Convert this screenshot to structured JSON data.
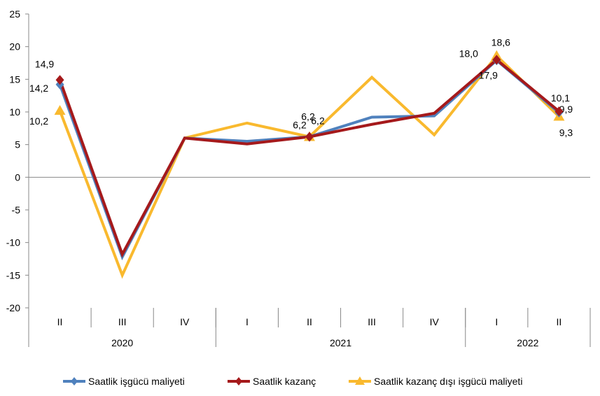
{
  "chart_data": {
    "type": "line",
    "categories": [
      "II",
      "III",
      "IV",
      "I",
      "II",
      "III",
      "IV",
      "I",
      "II"
    ],
    "years": [
      {
        "label": "2020",
        "span": 3
      },
      {
        "label": "2021",
        "span": 4
      },
      {
        "label": "2022",
        "span": 2
      }
    ],
    "ylim": [
      -20,
      25
    ],
    "yticks": [
      25,
      20,
      15,
      10,
      5,
      0,
      -5,
      -10,
      -15,
      -20
    ],
    "series": [
      {
        "name": "Saatlik işgücü maliyeti",
        "color": "#4F81BD",
        "marker": "diamond",
        "values": [
          14.2,
          -12.2,
          6.0,
          5.5,
          6.2,
          9.2,
          9.4,
          17.9,
          9.9
        ],
        "labels": [
          {
            "i": 0,
            "text": "14,2"
          },
          {
            "i": 4,
            "text": "6,2"
          },
          {
            "i": 7,
            "text": "17,9"
          },
          {
            "i": 8,
            "text": "9,9"
          }
        ]
      },
      {
        "name": "Saatlik kazanç",
        "color": "#A5191B",
        "marker": "diamond",
        "values": [
          14.9,
          -11.8,
          6.0,
          5.1,
          6.2,
          8.1,
          9.8,
          18.0,
          10.1
        ],
        "labels": [
          {
            "i": 0,
            "text": "14,9"
          },
          {
            "i": 4,
            "text": "6,2"
          },
          {
            "i": 7,
            "text": "18,0"
          },
          {
            "i": 8,
            "text": "10,1"
          }
        ]
      },
      {
        "name": "Saatlik kazanç dışı işgücü maliyeti",
        "color": "#F9B92E",
        "marker": "triangle",
        "values": [
          10.2,
          -15.0,
          6.0,
          8.3,
          6.2,
          15.3,
          6.5,
          18.6,
          9.3
        ],
        "labels": [
          {
            "i": 0,
            "text": "10,2"
          },
          {
            "i": 4,
            "text": "6,2"
          },
          {
            "i": 7,
            "text": "18,6"
          },
          {
            "i": 8,
            "text": "9,3"
          }
        ]
      }
    ],
    "legend": "bottom"
  }
}
